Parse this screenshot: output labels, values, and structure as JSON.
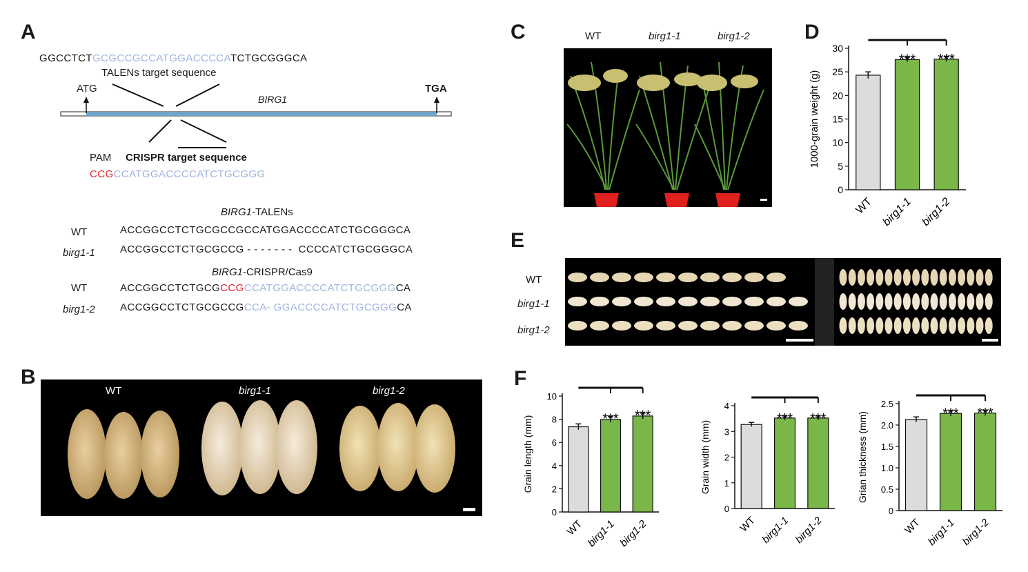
{
  "panels": {
    "A": "A",
    "B": "B",
    "C": "C",
    "D": "D",
    "E": "E",
    "F": "F"
  },
  "panelA": {
    "top_seq": {
      "pre": "GGCCTCT",
      "mid": "GCGCCGCCATGGACCCCA",
      "post": "TCTGCGGGCA"
    },
    "talens_label": "TALENs target sequence",
    "atg": "ATG",
    "tga": "TGA",
    "gene": "BIRG1",
    "pam_label": "PAM",
    "crispr_label": "CRISPR target sequence",
    "crispr_seq": {
      "pam": "CCG",
      "target": "CCATGGACCCCATCTGCGGG"
    },
    "talens_title": {
      "gene": "BIRG1",
      "suffix": "-TALENs"
    },
    "crispr_title": {
      "gene": "BIRG1",
      "suffix": "-CRISPR/Cas9"
    },
    "rows": [
      {
        "label": "WT",
        "seq": "ACCGGCCTCTGCGCCGCCATGGACCCCATCTGCGGGCA"
      },
      {
        "label": "birg1-1",
        "seq": "ACCGGCCTCTGCGCCG - - - - - - -  CCCCATCTGCGGGCA"
      },
      {
        "label": "WT",
        "pre": "ACCGGCCTCTGCG",
        "pam": "CCG",
        "target": "CCATGGACCCCATCTGCGGG",
        "post": "CA"
      },
      {
        "label": "birg1-2",
        "pre": "ACCGGCCTCTGCGCCG",
        "target": "CCA- GGACCCCATCTGCGGG",
        "post": "CA"
      }
    ]
  },
  "panelB": {
    "labels": [
      "WT",
      "birg1-1",
      "birg1-2"
    ]
  },
  "panelC": {
    "labels": [
      "WT",
      "birg1-1",
      "birg1-2"
    ]
  },
  "panelE": {
    "labels": [
      "WT",
      "birg1-1",
      "birg1-2"
    ]
  },
  "colors": {
    "wt_bar": "#dcdcdc",
    "mutant_bar": "#7ab648",
    "blue_seq": "#9fb3e0",
    "red_seq": "#e0242a"
  },
  "chart_data": [
    {
      "id": "D",
      "type": "bar",
      "categories": [
        "WT",
        "birg1-1",
        "birg1-2"
      ],
      "values": [
        24.3,
        27.6,
        27.7
      ],
      "errors": [
        0.7,
        0.5,
        0.5
      ],
      "significance": [
        "",
        "***",
        "***"
      ],
      "ylabel": "1000-grain weight (g)",
      "ylim": [
        0,
        30
      ],
      "yticks": [
        0,
        5,
        10,
        15,
        20,
        25,
        30
      ]
    },
    {
      "id": "F1",
      "type": "bar",
      "categories": [
        "WT",
        "birg1-1",
        "birg1-2"
      ],
      "values": [
        7.35,
        7.98,
        8.28
      ],
      "errors": [
        0.25,
        0.25,
        0.25
      ],
      "significance": [
        "",
        "***",
        "***"
      ],
      "ylabel": "Grain length (mm)",
      "ylim": [
        0,
        10
      ],
      "yticks": [
        0,
        2,
        4,
        6,
        8,
        10
      ]
    },
    {
      "id": "F2",
      "type": "bar",
      "categories": [
        "WT",
        "birg1-1",
        "birg1-2"
      ],
      "values": [
        3.27,
        3.52,
        3.52
      ],
      "errors": [
        0.08,
        0.08,
        0.08
      ],
      "significance": [
        "",
        "***",
        "***"
      ],
      "ylabel": "Grain width (mm)",
      "ylim": [
        0,
        4
      ],
      "yticks": [
        0,
        1,
        2,
        3,
        4
      ]
    },
    {
      "id": "F3",
      "type": "bar",
      "categories": [
        "WT",
        "birg1-1",
        "birg1-2"
      ],
      "values": [
        2.13,
        2.27,
        2.28
      ],
      "errors": [
        0.06,
        0.06,
        0.06
      ],
      "significance": [
        "",
        "***",
        "***"
      ],
      "ylabel": "Grian thickness (mm)",
      "ylim": [
        0,
        2.5
      ],
      "yticks": [
        0,
        0.5,
        1.0,
        1.5,
        2.0,
        2.5
      ]
    }
  ]
}
